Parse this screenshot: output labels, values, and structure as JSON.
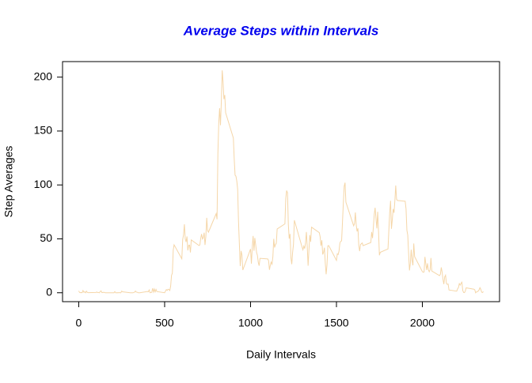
{
  "chart_data": {
    "type": "line",
    "title": "Average Steps within Intervals",
    "x_label": "Daily Intervals",
    "y_label": "Step Averages",
    "x": [
      0,
      5,
      10,
      15,
      20,
      25,
      30,
      35,
      40,
      45,
      50,
      55,
      100,
      105,
      110,
      115,
      120,
      125,
      130,
      135,
      140,
      145,
      150,
      155,
      200,
      205,
      210,
      215,
      220,
      225,
      230,
      235,
      240,
      245,
      250,
      255,
      300,
      305,
      310,
      315,
      320,
      325,
      330,
      335,
      340,
      345,
      350,
      355,
      400,
      405,
      410,
      415,
      420,
      425,
      430,
      435,
      440,
      445,
      450,
      455,
      500,
      505,
      510,
      515,
      520,
      525,
      530,
      535,
      540,
      545,
      550,
      555,
      600,
      605,
      610,
      615,
      620,
      625,
      630,
      635,
      640,
      645,
      650,
      655,
      700,
      705,
      710,
      715,
      720,
      725,
      730,
      735,
      740,
      745,
      750,
      755,
      800,
      805,
      810,
      815,
      820,
      825,
      830,
      835,
      840,
      845,
      850,
      855,
      900,
      905,
      910,
      915,
      920,
      925,
      930,
      935,
      940,
      945,
      950,
      955,
      1000,
      1005,
      1010,
      1015,
      1020,
      1025,
      1030,
      1035,
      1040,
      1045,
      1050,
      1055,
      1100,
      1105,
      1110,
      1115,
      1120,
      1125,
      1130,
      1135,
      1140,
      1145,
      1150,
      1155,
      1200,
      1205,
      1210,
      1215,
      1220,
      1225,
      1230,
      1235,
      1240,
      1245,
      1250,
      1255,
      1300,
      1305,
      1310,
      1315,
      1320,
      1325,
      1330,
      1335,
      1340,
      1345,
      1350,
      1355,
      1400,
      1405,
      1410,
      1415,
      1420,
      1425,
      1430,
      1435,
      1440,
      1445,
      1450,
      1455,
      1500,
      1505,
      1510,
      1515,
      1520,
      1525,
      1530,
      1535,
      1540,
      1545,
      1550,
      1555,
      1600,
      1605,
      1610,
      1615,
      1620,
      1625,
      1630,
      1635,
      1640,
      1645,
      1650,
      1655,
      1700,
      1705,
      1710,
      1715,
      1720,
      1725,
      1730,
      1735,
      1740,
      1745,
      1750,
      1755,
      1800,
      1805,
      1810,
      1815,
      1820,
      1825,
      1830,
      1835,
      1840,
      1845,
      1850,
      1855,
      1900,
      1905,
      1910,
      1915,
      1920,
      1925,
      1930,
      1935,
      1940,
      1945,
      1950,
      1955,
      2000,
      2005,
      2010,
      2015,
      2020,
      2025,
      2030,
      2035,
      2040,
      2045,
      2050,
      2055,
      2100,
      2105,
      2110,
      2115,
      2120,
      2125,
      2130,
      2135,
      2140,
      2145,
      2150,
      2155,
      2200,
      2205,
      2210,
      2215,
      2220,
      2225,
      2230,
      2235,
      2240,
      2245,
      2250,
      2255,
      2300,
      2305,
      2310,
      2315,
      2320,
      2325,
      2330,
      2335,
      2340,
      2345,
      2350,
      2355
    ],
    "values": [
      1.7,
      0.3,
      0.1,
      0.2,
      0.1,
      2.1,
      0.5,
      0.9,
      0,
      1.5,
      0.3,
      0.1,
      0.3,
      0.7,
      0.2,
      0.3,
      0,
      1.1,
      1.8,
      0.2,
      0.2,
      0.4,
      0.3,
      0,
      0,
      0,
      1.1,
      0,
      0,
      0.1,
      0,
      0.2,
      0,
      0,
      1.5,
      0.9,
      0,
      0,
      0,
      0,
      0.2,
      0.6,
      1.6,
      0.6,
      0.5,
      0.1,
      0,
      0,
      1.2,
      0.9,
      2.6,
      0,
      0.3,
      0.4,
      4.1,
      0.7,
      3.5,
      0.8,
      3.1,
      1.1,
      0,
      1.6,
      3.0,
      2.2,
      3.3,
      3.0,
      2.1,
      6.1,
      16.0,
      18.3,
      39.5,
      44.5,
      31.5,
      49.3,
      53.8,
      63.5,
      50.0,
      47.1,
      52.2,
      39.3,
      44.0,
      44.2,
      37.4,
      49.0,
      43.8,
      44.4,
      50.5,
      54.5,
      49.9,
      51.0,
      55.7,
      44.3,
      52.3,
      69.5,
      57.8,
      56.2,
      73.4,
      68.2,
      129.4,
      157.5,
      171.2,
      155.4,
      177.3,
      206.2,
      195.9,
      179.6,
      183.4,
      167.0,
      143.5,
      124.0,
      109.1,
      108.1,
      103.7,
      96.0,
      66.2,
      45.2,
      24.8,
      38.8,
      35.0,
      21.1,
      40.6,
      27.0,
      42.4,
      52.7,
      38.9,
      50.8,
      44.3,
      37.4,
      34.7,
      28.3,
      25.1,
      31.9,
      31.4,
      29.7,
      21.3,
      25.5,
      28.4,
      26.5,
      33.4,
      50.0,
      42.0,
      44.6,
      46.0,
      59.2,
      63.9,
      87.7,
      94.8,
      92.8,
      63.4,
      50.2,
      54.5,
      32.4,
      26.5,
      37.7,
      45.1,
      67.3,
      42.3,
      39.9,
      43.3,
      41.0,
      46.2,
      56.4,
      42.8,
      25.1,
      40.0,
      53.5,
      47.3,
      60.8,
      55.8,
      52.0,
      43.6,
      48.7,
      35.5,
      37.5,
      41.8,
      27.5,
      17.1,
      26.1,
      43.6,
      43.8,
      30.0,
      36.1,
      35.5,
      38.8,
      46.0,
      47.8,
      48.1,
      65.3,
      82.9,
      98.7,
      102.1,
      84.0,
      62.1,
      64.1,
      74.5,
      63.2,
      56.9,
      59.8,
      43.9,
      38.6,
      44.7,
      45.5,
      46.2,
      43.7,
      46.6,
      56.3,
      50.7,
      61.2,
      72.7,
      78.9,
      68.9,
      59.7,
      75.1,
      56.5,
      34.8,
      37.5,
      40.7,
      58.0,
      74.7,
      85.3,
      59.3,
      67.8,
      77.7,
      74.2,
      85.3,
      99.5,
      86.6,
      85.6,
      84.9,
      77.8,
      58.0,
      53.4,
      36.3,
      20.7,
      27.4,
      40.0,
      30.2,
      25.5,
      45.7,
      33.5,
      19.6,
      19.0,
      19.3,
      33.3,
      26.8,
      21.2,
      27.3,
      21.3,
      19.5,
      21.3,
      32.3,
      20.2,
      15.9,
      17.2,
      23.5,
      19.2,
      12.5,
      8.0,
      14.7,
      16.3,
      8.7,
      7.8,
      8.1,
      2.6,
      1.5,
      3.7,
      4.8,
      8.5,
      7.1,
      8.7,
      9.8,
      2.2,
      0.3,
      0.1,
      1.6,
      4.6,
      3.3,
      2.8,
      0,
      0.8,
      1.0,
      1.6,
      2.6,
      4.7,
      3.3,
      0.6,
      0.2,
      1.1
    ],
    "color": "#f5d6a8",
    "title_color": "#0000ee",
    "xlim": [
      -94.2,
      2449.2
    ],
    "xticks": [
      0,
      500,
      1000,
      1500,
      2000
    ],
    "ylim": [
      -8.25,
      214.4
    ],
    "yticks": [
      0,
      50,
      100,
      150,
      200
    ]
  }
}
